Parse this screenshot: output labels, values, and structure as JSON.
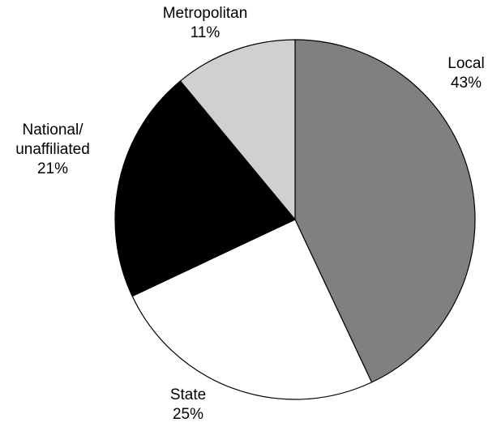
{
  "chart_data": {
    "type": "pie",
    "title": "",
    "slices": [
      {
        "name": "Local",
        "label_lines": [
          "Local"
        ],
        "pct_label": "43%",
        "value": 43,
        "color": "#808080"
      },
      {
        "name": "State",
        "label_lines": [
          "State"
        ],
        "pct_label": "25%",
        "value": 25,
        "color": "#ffffff"
      },
      {
        "name": "National/unaffiliated",
        "label_lines": [
          "National/",
          "unaffiliated"
        ],
        "pct_label": "21%",
        "value": 21,
        "color": "#000000"
      },
      {
        "name": "Metropolitan",
        "label_lines": [
          "Metropolitan"
        ],
        "pct_label": "11%",
        "value": 11,
        "color": "#d0d0d0"
      }
    ],
    "start": "top (12 o'clock)",
    "direction": "clockwise",
    "legend": "none",
    "labels": "outside"
  }
}
